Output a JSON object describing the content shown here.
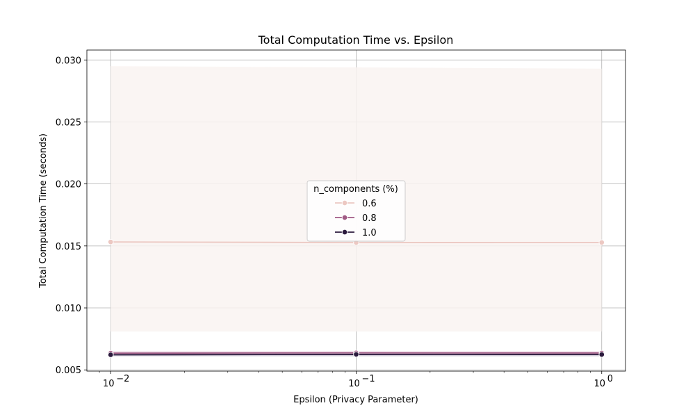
{
  "chart_data": {
    "type": "line",
    "title": "Total Computation Time vs. Epsilon",
    "xlabel": "Epsilon (Privacy Parameter)",
    "ylabel": "Total Computation Time (seconds)",
    "x_scale": "log",
    "x": [
      0.01,
      0.1,
      1.0
    ],
    "xlim": [
      0.008,
      1.25
    ],
    "ylim": [
      0.0049,
      0.0308
    ],
    "x_ticks": [
      0.01,
      0.1,
      1.0
    ],
    "x_tick_labels": [
      "10",
      "10",
      "10"
    ],
    "x_tick_exponents": [
      "−2",
      "−1",
      "0"
    ],
    "y_ticks": [
      0.005,
      0.01,
      0.015,
      0.02,
      0.025,
      0.03
    ],
    "y_tick_labels": [
      "0.005",
      "0.010",
      "0.015",
      "0.020",
      "0.025",
      "0.030"
    ],
    "grid": true,
    "legend": {
      "title": "n_components (%)",
      "placement": "center"
    },
    "series": [
      {
        "name": "0.6",
        "color": "#ecc8c2",
        "band_color": "#f9f3f1",
        "values": [
          0.01532,
          0.01527,
          0.01528
        ],
        "ci_low": [
          0.0081,
          0.0081,
          0.0081
        ],
        "ci_high": [
          0.0295,
          0.0294,
          0.0293
        ]
      },
      {
        "name": "0.8",
        "color": "#a05a84",
        "band_color": "#e9d3e2",
        "values": [
          0.00635,
          0.00637,
          0.00636
        ],
        "ci_low": [
          0.0062,
          0.0062,
          0.0062
        ],
        "ci_high": [
          0.0065,
          0.0065,
          0.0065
        ]
      },
      {
        "name": "1.0",
        "color": "#2b1a3d",
        "band_color": "#cbc6d2",
        "values": [
          0.00622,
          0.00625,
          0.00624
        ],
        "ci_low": [
          0.0061,
          0.0061,
          0.0061
        ],
        "ci_high": [
          0.00635,
          0.00635,
          0.00635
        ]
      }
    ]
  }
}
